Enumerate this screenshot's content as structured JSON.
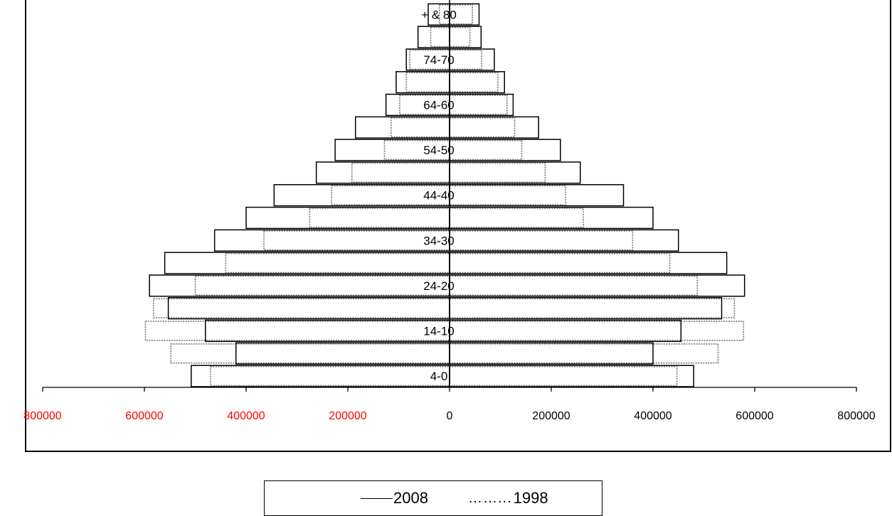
{
  "chart_data": {
    "type": "bar",
    "title": "",
    "xlabel": "",
    "ylabel": "",
    "xlim": [
      -800000,
      800000
    ],
    "x_ticks": [
      {
        "label": "800000",
        "value": -800000,
        "color": "#ff0000"
      },
      {
        "label": "600000",
        "value": -600000,
        "color": "#ff0000"
      },
      {
        "label": "400000",
        "value": -400000,
        "color": "#ff0000"
      },
      {
        "label": "200000",
        "value": -200000,
        "color": "#ff0000"
      },
      {
        "label": "0",
        "value": 0,
        "color": "#000000"
      },
      {
        "label": "200000",
        "value": 200000,
        "color": "#000000"
      },
      {
        "label": "400000",
        "value": 400000,
        "color": "#000000"
      },
      {
        "label": "600000",
        "value": 600000,
        "color": "#000000"
      },
      {
        "label": "800000",
        "value": 800000,
        "color": "#000000"
      }
    ],
    "age_labels": [
      "4-0",
      "",
      "14-10",
      "",
      "24-20",
      "",
      "34-30",
      "",
      "44-40",
      "",
      "54-50",
      "",
      "64-60",
      "",
      "74-70",
      "",
      "+ & 80"
    ],
    "series": [
      {
        "name": "2008",
        "style": "solid",
        "left": [
          508000,
          420000,
          480000,
          553000,
          590000,
          560000,
          462000,
          400000,
          345000,
          262000,
          225000,
          185000,
          125000,
          105000,
          85000,
          62000,
          42000
        ],
        "right": [
          480000,
          400000,
          455000,
          535000,
          580000,
          545000,
          450000,
          400000,
          342000,
          257000,
          218000,
          175000,
          125000,
          108000,
          88000,
          62000,
          58000
        ]
      },
      {
        "name": "1998",
        "style": "dotted",
        "left": [
          470000,
          548000,
          598000,
          582000,
          500000,
          440000,
          365000,
          275000,
          232000,
          192000,
          128000,
          115000,
          98000,
          85000,
          78000,
          37000,
          20000
        ],
        "right": [
          447000,
          528000,
          578000,
          560000,
          487000,
          433000,
          360000,
          263000,
          228000,
          188000,
          142000,
          128000,
          113000,
          95000,
          63000,
          40000,
          45000
        ]
      }
    ],
    "legend": {
      "position": "bottom-center",
      "items": [
        {
          "name": "2008",
          "marker": "solid-line"
        },
        {
          "name": "1998",
          "marker": "dotted-line"
        }
      ]
    },
    "grid": false
  },
  "legend_text": {
    "label_2008": "2008",
    "label_1998": "1998",
    "dots_1998": "……..."
  }
}
